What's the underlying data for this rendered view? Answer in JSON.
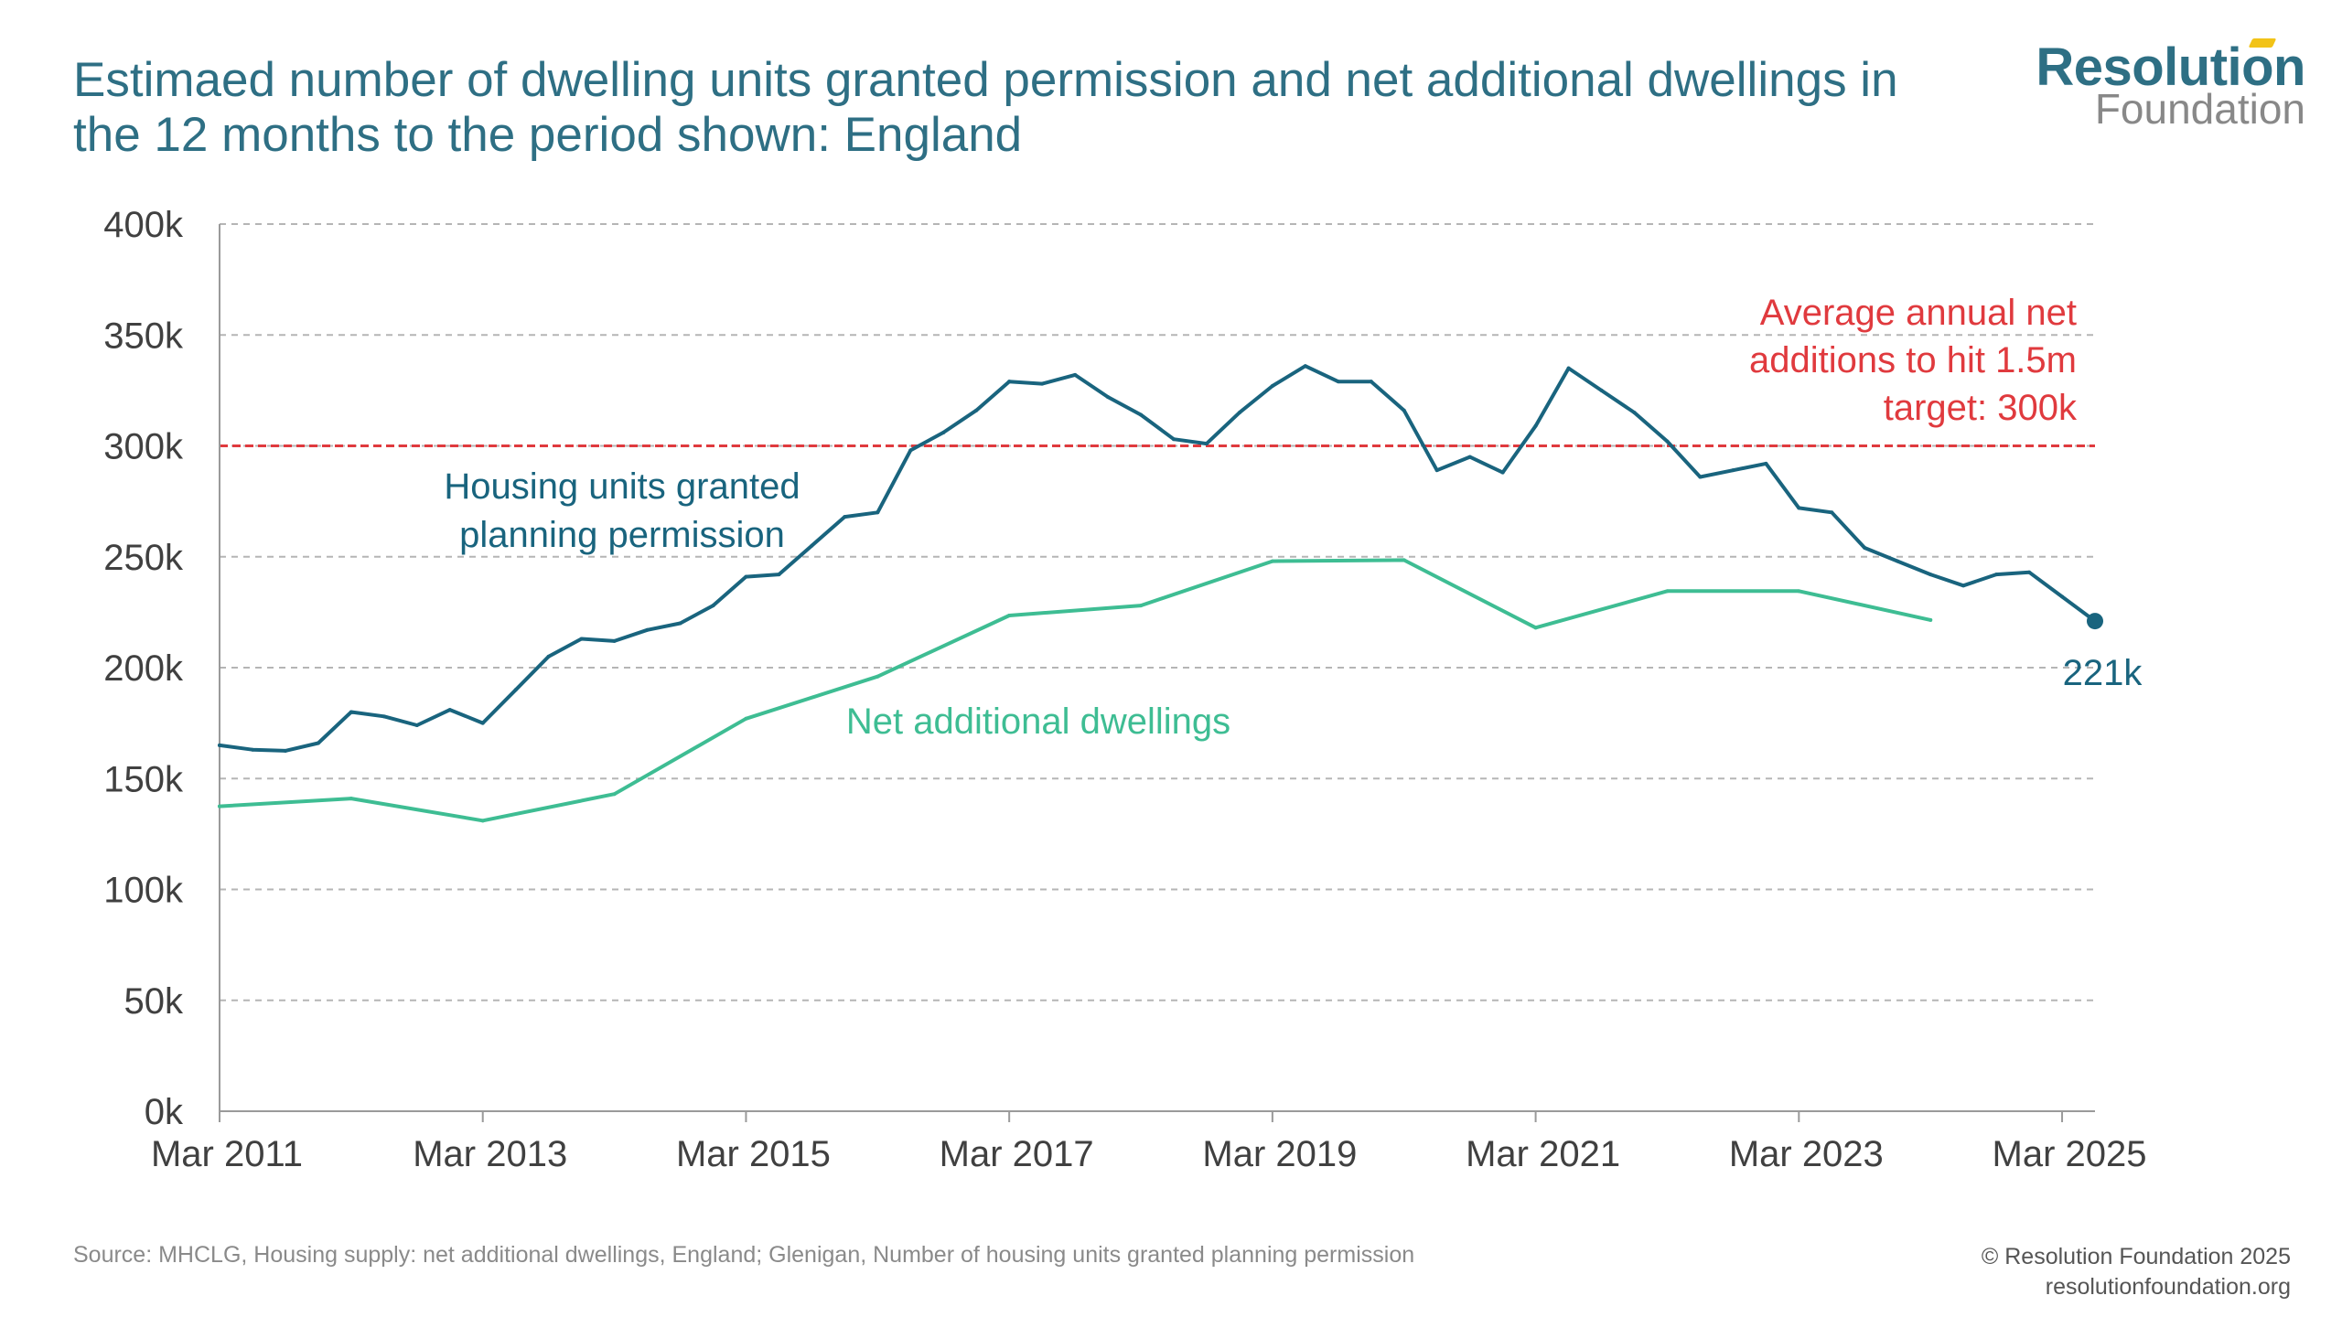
{
  "title": "Estimaed number of dwelling units granted permission and net additional dwellings in the 12 months to the period shown: England",
  "logo": {
    "main": "Resolution",
    "sub": "Foundation"
  },
  "footer": {
    "source": "Source: MHCLG, Housing supply: net additional dwellings, England; Glenigan, Number of housing units granted planning permission",
    "copyright": "© Resolution Foundation 2025",
    "website": "resolutionfoundation.org"
  },
  "colors": {
    "permissions": "#19647e",
    "net": "#3ebd93",
    "target": "#e03a3e",
    "grid": "#b5b5b5",
    "axis_text": "#404040"
  },
  "chart_data": {
    "type": "line",
    "x_range": [
      2011.0,
      2025.25
    ],
    "xticks": [
      {
        "label": "Mar 2011",
        "x": 2011.0
      },
      {
        "label": "Mar 2013",
        "x": 2013.0
      },
      {
        "label": "Mar 2015",
        "x": 2015.0
      },
      {
        "label": "Mar 2017",
        "x": 2017.0
      },
      {
        "label": "Mar 2019",
        "x": 2019.0
      },
      {
        "label": "Mar 2021",
        "x": 2021.0
      },
      {
        "label": "Mar 2023",
        "x": 2023.0
      },
      {
        "label": "Mar 2025",
        "x": 2025.0
      }
    ],
    "ylim": [
      0,
      400000
    ],
    "yticks": [
      {
        "label": "0k",
        "value": 0
      },
      {
        "label": "50k",
        "value": 50000
      },
      {
        "label": "100k",
        "value": 100000
      },
      {
        "label": "150k",
        "value": 150000
      },
      {
        "label": "200k",
        "value": 200000
      },
      {
        "label": "250k",
        "value": 250000
      },
      {
        "label": "300k",
        "value": 300000
      },
      {
        "label": "350k",
        "value": 350000
      },
      {
        "label": "400k",
        "value": 400000
      }
    ],
    "grid": "horizontal dashed",
    "target_line": {
      "value": 300000,
      "label_lines": [
        "Average annual net",
        "additions to hit 1.5m",
        "target: 300k"
      ]
    },
    "series": [
      {
        "name": "Housing units granted planning permission",
        "label_lines": [
          "Housing units granted",
          "planning permission"
        ],
        "color": "#19647e",
        "end_label": "221k",
        "x": [
          2011.0,
          2011.25,
          2011.5,
          2011.75,
          2012.0,
          2012.25,
          2012.5,
          2012.75,
          2013.0,
          2013.25,
          2013.5,
          2013.75,
          2014.0,
          2014.25,
          2014.5,
          2014.75,
          2015.0,
          2015.25,
          2015.5,
          2015.75,
          2016.0,
          2016.25,
          2016.5,
          2016.75,
          2017.0,
          2017.25,
          2017.5,
          2017.75,
          2018.0,
          2018.25,
          2018.5,
          2018.75,
          2019.0,
          2019.25,
          2019.5,
          2019.75,
          2020.0,
          2020.25,
          2020.5,
          2020.75,
          2021.0,
          2021.25,
          2021.5,
          2021.75,
          2022.0,
          2022.25,
          2022.5,
          2022.75,
          2023.0,
          2023.25,
          2023.5,
          2023.75,
          2024.0,
          2024.25,
          2024.5,
          2024.75,
          2025.0,
          2025.25
        ],
        "values": [
          165000,
          163000,
          162500,
          166000,
          180000,
          178000,
          174000,
          181000,
          175000,
          190000,
          205000,
          213000,
          212000,
          217000,
          220000,
          228000,
          241000,
          242000,
          255000,
          268000,
          270000,
          298000,
          306000,
          316000,
          329000,
          328000,
          332000,
          322000,
          314000,
          303000,
          301000,
          315000,
          327000,
          336000,
          329000,
          329000,
          316000,
          289000,
          295000,
          288000,
          309000,
          335000,
          325000,
          315000,
          302000,
          286000,
          289000,
          292000,
          272000,
          270000,
          254000,
          248000,
          242000,
          237000,
          242000,
          243000,
          232000,
          221000
        ]
      },
      {
        "name": "Net additional dwellings",
        "label_lines": [
          "Net additional dwellings"
        ],
        "color": "#3ebd93",
        "x": [
          2011.0,
          2012.0,
          2013.0,
          2014.0,
          2015.0,
          2016.0,
          2017.0,
          2018.0,
          2019.0,
          2020.0,
          2021.0,
          2022.0,
          2023.0,
          2024.0
        ],
        "values": [
          137500,
          141000,
          131000,
          143000,
          177000,
          196000,
          223500,
          228000,
          248000,
          248500,
          218000,
          234500,
          234500,
          221500
        ]
      }
    ]
  }
}
